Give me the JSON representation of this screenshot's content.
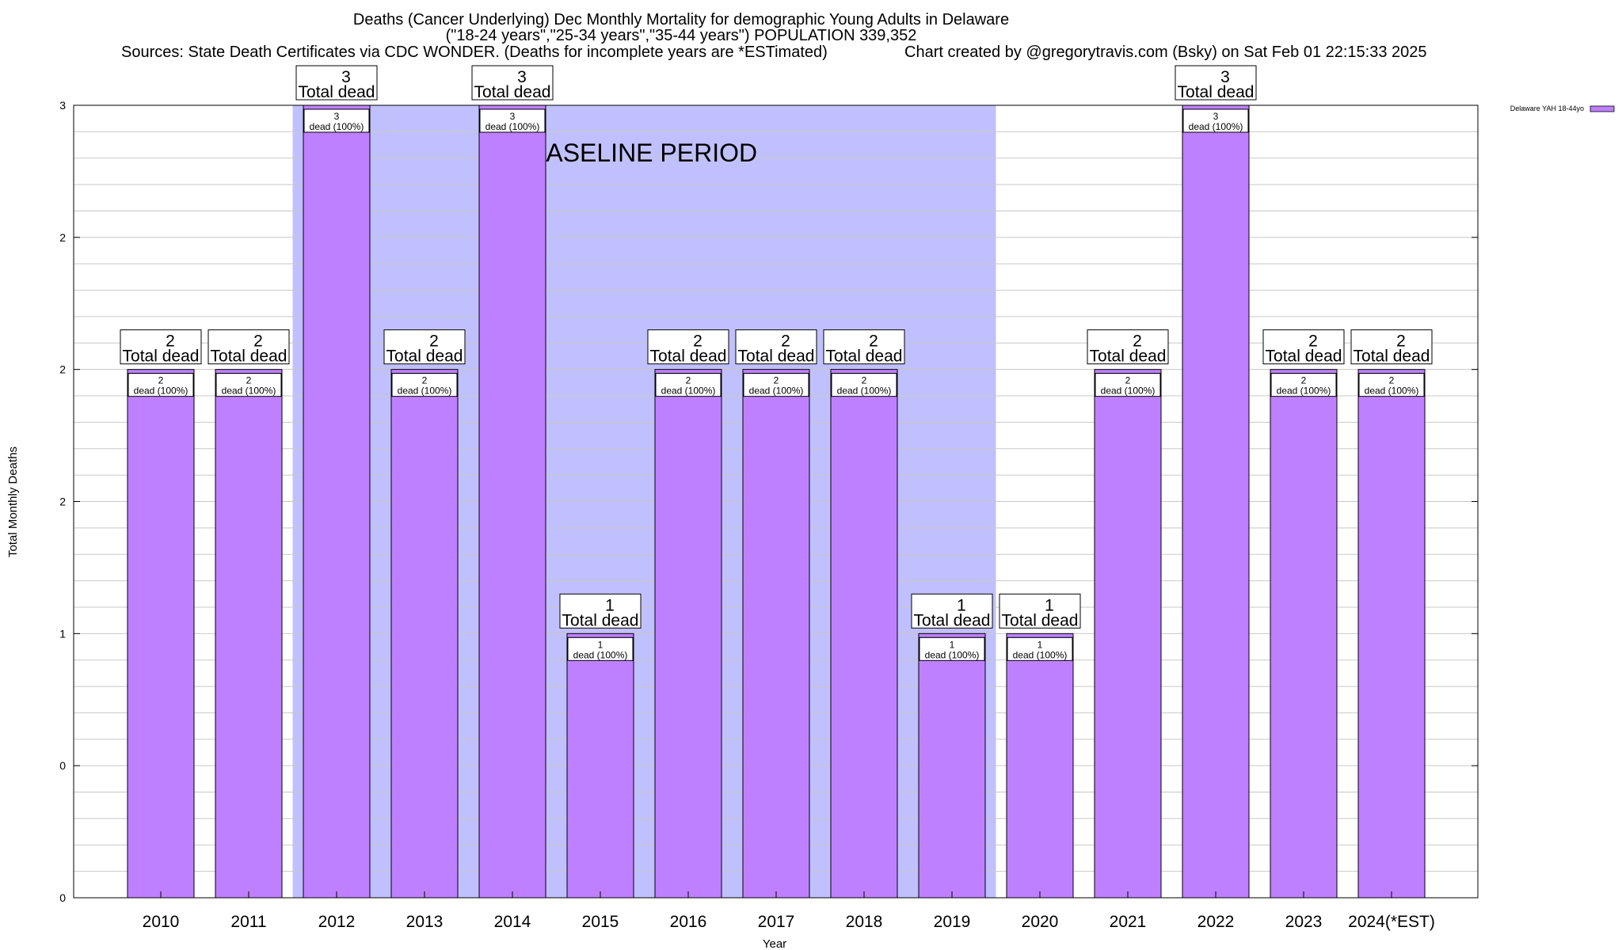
{
  "chart_data": {
    "type": "bar",
    "title": [
      "Deaths (Cancer Underlying) Dec Monthly Mortality for demographic Young Adults in Delaware",
      "(\"18-24 years\",\"25-34 years\",\"35-44 years\") POPULATION 339,352"
    ],
    "subtitle_left": "Sources: State Death Certificates via CDC WONDER. (Deaths for incomplete years are *ESTimated)",
    "subtitle_right": "Chart created by @gregorytravis.com (Bsky) on Sat Feb 01 22:15:33 2025",
    "xlabel": "Year",
    "ylabel": "Total Monthly Deaths",
    "categories": [
      "2010",
      "2011",
      "2012",
      "2013",
      "2014",
      "2015",
      "2016",
      "2017",
      "2018",
      "2019",
      "2020",
      "2021",
      "2022",
      "2023",
      "2024(*EST)"
    ],
    "series": [
      {
        "name": "Delaware YAH 18-44yo",
        "color": "#bf80ff",
        "values": [
          2,
          2,
          3,
          2,
          3,
          1,
          2,
          2,
          2,
          1,
          1,
          2,
          3,
          2,
          2
        ]
      }
    ],
    "ylim": [
      0,
      3
    ],
    "ytick_values": [
      0,
      0.5,
      1,
      1.5,
      2,
      2.5,
      3
    ],
    "ytick_labels": [
      "0",
      "0",
      "1",
      "2",
      "2",
      "2",
      "3"
    ],
    "grid": true,
    "total_label_suffix": "Total dead",
    "bar_label_suffix": "dead (100%)",
    "baseline_period": {
      "label": "BASELINE PERIOD",
      "from": "2012",
      "to": "2019",
      "color": "#c0c0ff"
    },
    "legend_position": "top-right"
  }
}
